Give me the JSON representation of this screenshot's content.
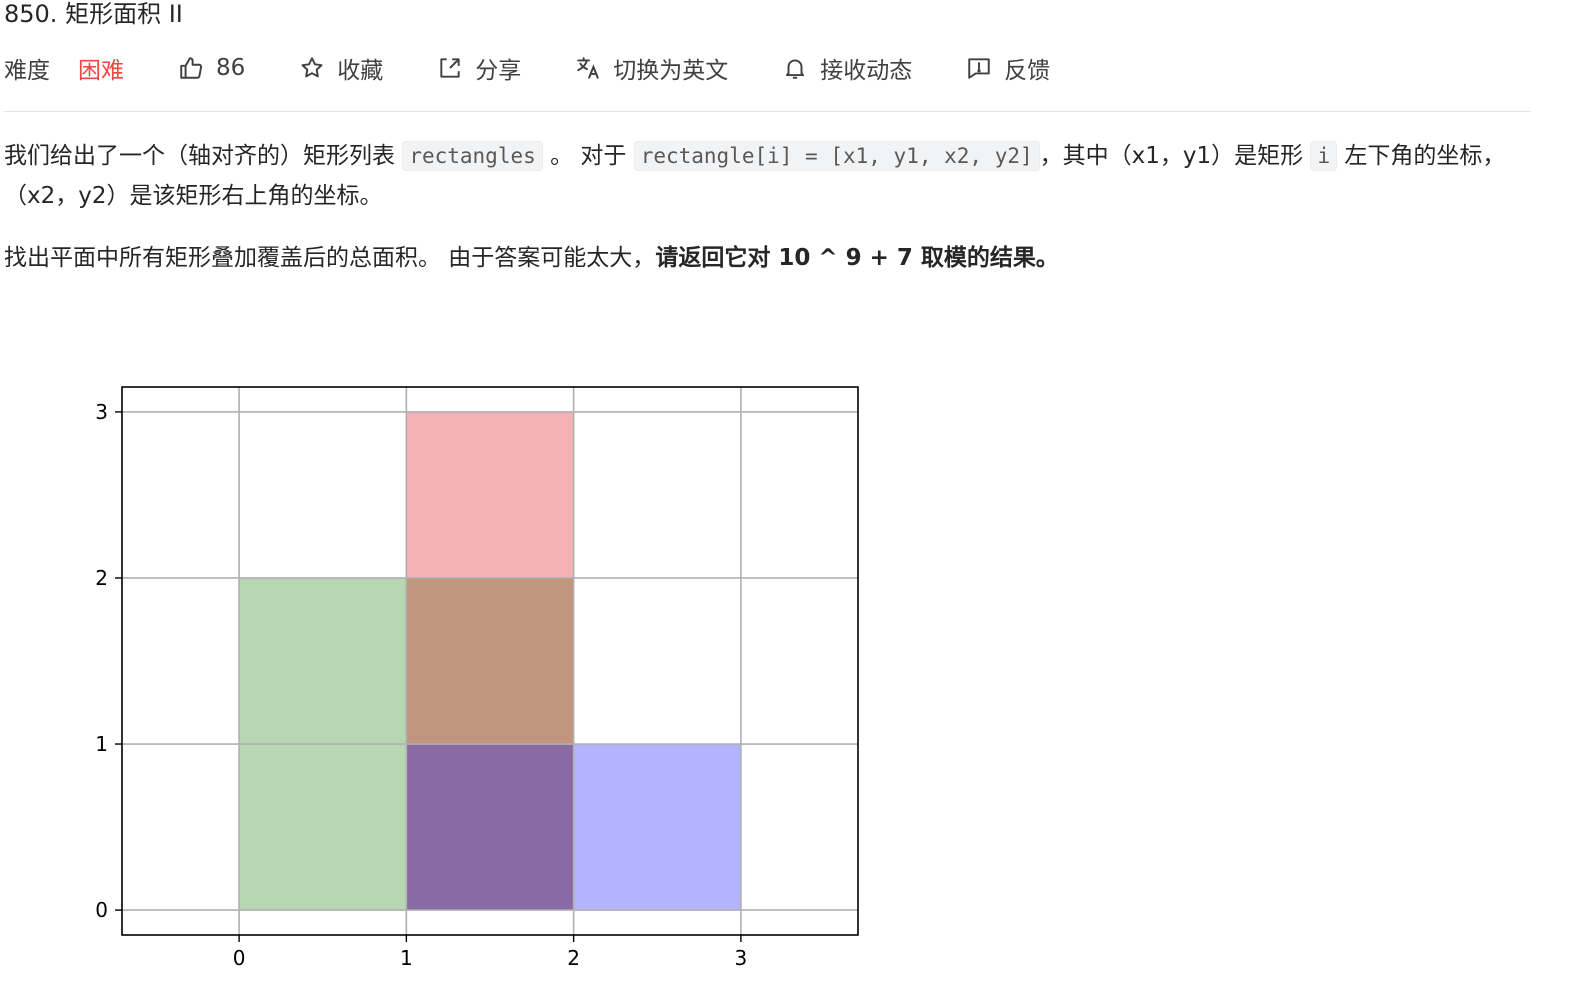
{
  "problem": {
    "title": "850. 矩形面积 II"
  },
  "meta": {
    "difficulty_label": "难度",
    "difficulty_value": "困难",
    "likes": "86",
    "favorite": "收藏",
    "share": "分享",
    "switch_language": "切换为英文",
    "subscribe": "接收动态",
    "feedback": "反馈"
  },
  "description": {
    "p1_a": "我们给出了一个（轴对齐的）矩形列表",
    "p1_code1": "rectangles",
    "p1_b": "。 对于",
    "p1_code2": "rectangle[i] = [x1, y1, x2, y2]",
    "p1_c": "，其中（x1，y1）是矩形",
    "p1_code3": "i",
    "p1_d": "左下角的坐标，（x2，y2）是该矩形右上角的坐标。",
    "p2_a": "找出平面中所有矩形叠加覆盖后的总面积。 由于答案可能太大，",
    "p2_bold": "请返回它对 10 ^ 9 + 7 取模的结果。"
  },
  "chart_data": {
    "type": "rectangles",
    "xlim": [
      -0.7,
      3.7
    ],
    "ylim": [
      -0.15,
      3.15
    ],
    "xticks": [
      0,
      1,
      2,
      3
    ],
    "yticks": [
      0,
      1,
      2,
      3
    ],
    "grid": true,
    "regions": [
      {
        "x1": 0,
        "y1": 0,
        "x2": 1,
        "y2": 2,
        "color": "#b6d7b2"
      },
      {
        "x1": 1,
        "y1": 2,
        "x2": 2,
        "y2": 3,
        "color": "#f3b3b4"
      },
      {
        "x1": 1,
        "y1": 1,
        "x2": 2,
        "y2": 2,
        "color": "#c0967c"
      },
      {
        "x1": 1,
        "y1": 0,
        "x2": 2,
        "y2": 1,
        "color": "#8a6aa4"
      },
      {
        "x1": 2,
        "y1": 0,
        "x2": 3,
        "y2": 1,
        "color": "#b3b3ff"
      }
    ]
  }
}
